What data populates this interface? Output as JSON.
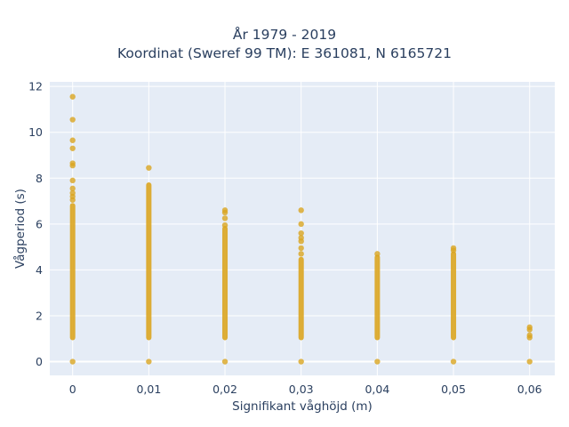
{
  "chart_data": {
    "type": "scatter",
    "title_line1": "År 1979 - 2019",
    "title_line2": "Koordinat (Sweref 99 TM): E 361081, N 6165721",
    "xlabel": "Signifikant våghöjd (m)",
    "ylabel": "Vågperiod (s)",
    "xlim": [
      -0.003,
      0.0633
    ],
    "ylim": [
      -0.6,
      12.2
    ],
    "x_ticks": [
      0,
      0.01,
      0.02,
      0.03,
      0.04,
      0.05,
      0.06
    ],
    "x_tick_labels": [
      "0",
      "0,01",
      "0,02",
      "0,03",
      "0,04",
      "0,05",
      "0,06"
    ],
    "y_ticks": [
      0,
      2,
      4,
      6,
      8,
      10,
      12
    ],
    "y_tick_labels": [
      "0",
      "2",
      "4",
      "6",
      "8",
      "10",
      "12"
    ],
    "grid": true,
    "marker_color": "#DAA520",
    "columns": [
      {
        "x": 0,
        "range": [
          1.05,
          6.8
        ],
        "points": [
          0,
          7.05,
          7.2,
          7.35,
          7.55,
          7.9,
          8.55,
          8.65,
          9.3,
          9.65,
          10.55,
          11.55
        ]
      },
      {
        "x": 0.01,
        "range": [
          1.05,
          7.7
        ],
        "points": [
          0,
          8.45
        ]
      },
      {
        "x": 0.02,
        "range": [
          1.05,
          5.8
        ],
        "points": [
          0,
          5.95,
          6.25,
          6.5,
          6.6
        ]
      },
      {
        "x": 0.03,
        "range": [
          1.05,
          4.45
        ],
        "points": [
          0,
          4.7,
          4.95,
          5.25,
          5.4,
          5.6,
          6.0,
          6.6
        ]
      },
      {
        "x": 0.04,
        "range": [
          1.05,
          4.55
        ],
        "points": [
          0,
          4.7
        ]
      },
      {
        "x": 0.05,
        "range": [
          1.05,
          4.7
        ],
        "points": [
          0,
          4.85,
          4.95
        ]
      },
      {
        "x": 0.06,
        "range": [],
        "points": [
          0,
          1.05,
          1.15,
          1.4,
          1.5
        ]
      }
    ]
  }
}
